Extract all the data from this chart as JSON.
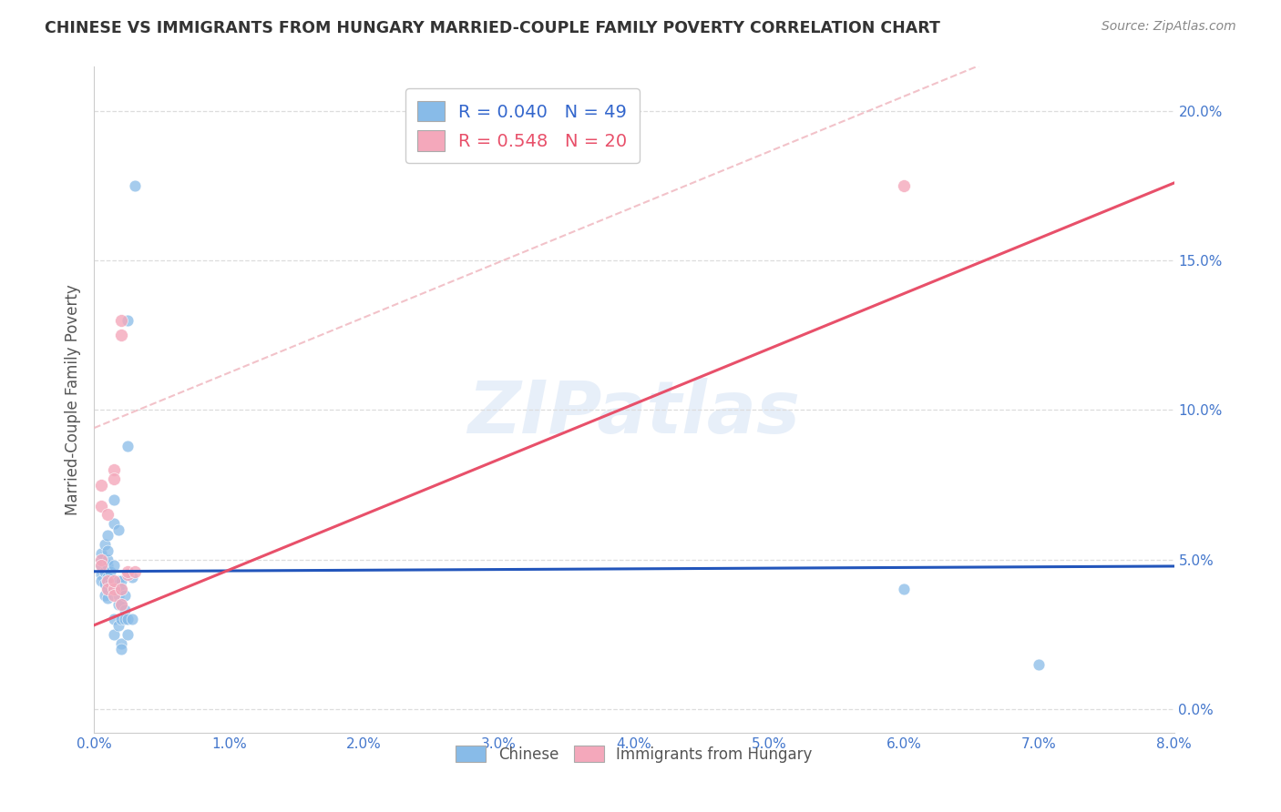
{
  "title": "CHINESE VS IMMIGRANTS FROM HUNGARY MARRIED-COUPLE FAMILY POVERTY CORRELATION CHART",
  "source": "Source: ZipAtlas.com",
  "ylabel": "Married-Couple Family Poverty",
  "xlim": [
    0.0,
    0.08
  ],
  "ylim": [
    -0.008,
    0.215
  ],
  "xticks": [
    0.0,
    0.01,
    0.02,
    0.03,
    0.04,
    0.05,
    0.06,
    0.07,
    0.08
  ],
  "xtick_labels": [
    "0.0%",
    "1.0%",
    "2.0%",
    "3.0%",
    "4.0%",
    "5.0%",
    "6.0%",
    "7.0%",
    "8.0%"
  ],
  "yticks_right": [
    0.0,
    0.05,
    0.1,
    0.15,
    0.2
  ],
  "ytick_labels_right": [
    "0.0%",
    "5.0%",
    "10.0%",
    "15.0%",
    "20.0%"
  ],
  "chinese_color": "#88BBE8",
  "hungary_color": "#F4A8BB",
  "chinese_line_color": "#2255BB",
  "hungary_line_color": "#E8506A",
  "dashed_line_color": "#F0B8C0",
  "R_chinese": 0.04,
  "N_chinese": 49,
  "R_hungary": 0.548,
  "N_hungary": 20,
  "watermark": "ZIPatlas",
  "chinese_line_slope": 0.022,
  "chinese_line_intercept": 0.046,
  "hungary_line_slope": 1.85,
  "hungary_line_intercept": 0.028,
  "dashed_line_slope": 1.85,
  "dashed_line_intercept": 0.094,
  "chinese_points": [
    [
      0.0005,
      0.045
    ],
    [
      0.0005,
      0.043
    ],
    [
      0.0005,
      0.048
    ],
    [
      0.0005,
      0.05
    ],
    [
      0.0005,
      0.052
    ],
    [
      0.0008,
      0.046
    ],
    [
      0.0008,
      0.042
    ],
    [
      0.0008,
      0.038
    ],
    [
      0.0008,
      0.055
    ],
    [
      0.001,
      0.044
    ],
    [
      0.001,
      0.048
    ],
    [
      0.001,
      0.058
    ],
    [
      0.001,
      0.05
    ],
    [
      0.001,
      0.053
    ],
    [
      0.001,
      0.04
    ],
    [
      0.001,
      0.037
    ],
    [
      0.001,
      0.043
    ],
    [
      0.0012,
      0.046
    ],
    [
      0.0012,
      0.042
    ],
    [
      0.0015,
      0.062
    ],
    [
      0.0015,
      0.07
    ],
    [
      0.0015,
      0.048
    ],
    [
      0.0015,
      0.03
    ],
    [
      0.0015,
      0.025
    ],
    [
      0.0015,
      0.04
    ],
    [
      0.0018,
      0.043
    ],
    [
      0.0018,
      0.04
    ],
    [
      0.0018,
      0.038
    ],
    [
      0.0018,
      0.035
    ],
    [
      0.0018,
      0.028
    ],
    [
      0.0018,
      0.06
    ],
    [
      0.002,
      0.035
    ],
    [
      0.002,
      0.03
    ],
    [
      0.002,
      0.022
    ],
    [
      0.002,
      0.02
    ],
    [
      0.002,
      0.043
    ],
    [
      0.002,
      0.04
    ],
    [
      0.0023,
      0.038
    ],
    [
      0.0023,
      0.033
    ],
    [
      0.0023,
      0.03
    ],
    [
      0.0025,
      0.03
    ],
    [
      0.0025,
      0.025
    ],
    [
      0.0025,
      0.088
    ],
    [
      0.0025,
      0.13
    ],
    [
      0.0028,
      0.044
    ],
    [
      0.0028,
      0.03
    ],
    [
      0.003,
      0.175
    ],
    [
      0.06,
      0.04
    ],
    [
      0.07,
      0.015
    ]
  ],
  "hungary_points": [
    [
      0.0005,
      0.068
    ],
    [
      0.0005,
      0.05
    ],
    [
      0.0005,
      0.048
    ],
    [
      0.0005,
      0.075
    ],
    [
      0.001,
      0.043
    ],
    [
      0.001,
      0.04
    ],
    [
      0.001,
      0.065
    ],
    [
      0.0015,
      0.04
    ],
    [
      0.0015,
      0.043
    ],
    [
      0.0015,
      0.038
    ],
    [
      0.0015,
      0.08
    ],
    [
      0.0015,
      0.077
    ],
    [
      0.002,
      0.04
    ],
    [
      0.002,
      0.035
    ],
    [
      0.002,
      0.125
    ],
    [
      0.002,
      0.13
    ],
    [
      0.0025,
      0.045
    ],
    [
      0.0025,
      0.046
    ],
    [
      0.003,
      0.046
    ],
    [
      0.06,
      0.175
    ]
  ],
  "chinese_scatter_size": 85,
  "hungary_scatter_size": 100
}
